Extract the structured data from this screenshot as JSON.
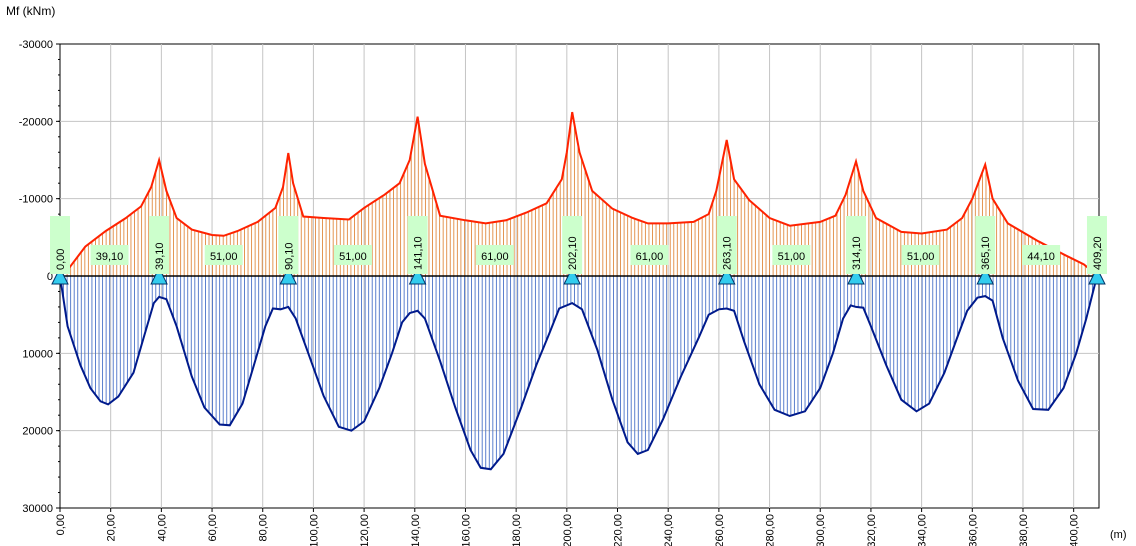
{
  "chart_data": {
    "type": "line",
    "ylabel": "Mf (kNm)",
    "xlabel": "(m)",
    "xlim": [
      0,
      410
    ],
    "ylim": [
      -30000,
      30000
    ],
    "y_inverted": true,
    "grid": true,
    "y_ticks": [
      "-30000",
      "-20000",
      "-10000",
      "0",
      "10000",
      "20000",
      "30000"
    ],
    "y_tick_values": [
      -30000,
      -20000,
      -10000,
      0,
      10000,
      20000,
      30000
    ],
    "x_ticks": [
      "0,00",
      "20,00",
      "40,00",
      "60,00",
      "80,00",
      "100,00",
      "120,00",
      "140,00",
      "160,00",
      "180,00",
      "200,00",
      "220,00",
      "240,00",
      "260,00",
      "280,00",
      "300,00",
      "320,00",
      "340,00",
      "360,00",
      "380,00",
      "400,00"
    ],
    "x_tick_values": [
      0,
      20,
      40,
      60,
      80,
      100,
      120,
      140,
      160,
      180,
      200,
      220,
      240,
      260,
      280,
      300,
      320,
      340,
      360,
      380,
      400
    ],
    "supports": [
      {
        "x": 0.0,
        "label": "0,00"
      },
      {
        "x": 39.1,
        "label": "39,10"
      },
      {
        "x": 90.1,
        "label": "90,10"
      },
      {
        "x": 141.1,
        "label": "141,10"
      },
      {
        "x": 202.1,
        "label": "202,10"
      },
      {
        "x": 263.1,
        "label": "263,10"
      },
      {
        "x": 314.1,
        "label": "314,10"
      },
      {
        "x": 365.1,
        "label": "365,10"
      },
      {
        "x": 409.2,
        "label": "409,20"
      }
    ],
    "spans": [
      {
        "x": 19.55,
        "label": "39,10"
      },
      {
        "x": 64.6,
        "label": "51,00"
      },
      {
        "x": 115.6,
        "label": "51,00"
      },
      {
        "x": 171.6,
        "label": "61,00"
      },
      {
        "x": 232.6,
        "label": "61,00"
      },
      {
        "x": 288.6,
        "label": "51,00"
      },
      {
        "x": 339.6,
        "label": "51,00"
      },
      {
        "x": 387.15,
        "label": "44,10"
      }
    ],
    "series": [
      {
        "color": "#ff2200",
        "hatch_color": "#e08a40",
        "points": [
          [
            0,
            -200
          ],
          [
            4,
            -1200
          ],
          [
            10,
            -3800
          ],
          [
            18,
            -5800
          ],
          [
            26,
            -7500
          ],
          [
            32,
            -9000
          ],
          [
            36,
            -11500
          ],
          [
            39.1,
            -15000
          ],
          [
            42,
            -11000
          ],
          [
            46,
            -7500
          ],
          [
            52,
            -6000
          ],
          [
            60,
            -5300
          ],
          [
            64.6,
            -5200
          ],
          [
            70,
            -5800
          ],
          [
            78,
            -7000
          ],
          [
            85,
            -8800
          ],
          [
            88,
            -11500
          ],
          [
            90.1,
            -15900
          ],
          [
            92,
            -12000
          ],
          [
            96,
            -7700
          ],
          [
            104,
            -7500
          ],
          [
            114,
            -7300
          ],
          [
            120,
            -8800
          ],
          [
            128,
            -10500
          ],
          [
            134,
            -12000
          ],
          [
            138,
            -15000
          ],
          [
            141.1,
            -20600
          ],
          [
            144,
            -14500
          ],
          [
            150,
            -7800
          ],
          [
            160,
            -7200
          ],
          [
            168,
            -6800
          ],
          [
            176,
            -7200
          ],
          [
            184,
            -8200
          ],
          [
            192,
            -9400
          ],
          [
            198,
            -12500
          ],
          [
            200,
            -16000
          ],
          [
            202.1,
            -21200
          ],
          [
            205,
            -16000
          ],
          [
            210,
            -11000
          ],
          [
            218,
            -8700
          ],
          [
            226,
            -7500
          ],
          [
            232,
            -6800
          ],
          [
            240,
            -6800
          ],
          [
            250,
            -7000
          ],
          [
            256,
            -8000
          ],
          [
            259,
            -11000
          ],
          [
            263.1,
            -17600
          ],
          [
            266,
            -12500
          ],
          [
            272,
            -9800
          ],
          [
            280,
            -7500
          ],
          [
            288,
            -6500
          ],
          [
            300,
            -7000
          ],
          [
            306,
            -7800
          ],
          [
            310,
            -10500
          ],
          [
            314.1,
            -14800
          ],
          [
            317,
            -11000
          ],
          [
            322,
            -7500
          ],
          [
            332,
            -5700
          ],
          [
            340,
            -5500
          ],
          [
            350,
            -6000
          ],
          [
            356,
            -7500
          ],
          [
            360,
            -10000
          ],
          [
            365.1,
            -14400
          ],
          [
            368,
            -10000
          ],
          [
            374,
            -6800
          ],
          [
            386,
            -4500
          ],
          [
            396,
            -2800
          ],
          [
            404,
            -1500
          ],
          [
            409.2,
            -100
          ]
        ]
      },
      {
        "color": "#001a8c",
        "hatch_color": "#4a72c8",
        "points": [
          [
            0,
            0
          ],
          [
            3,
            6500
          ],
          [
            8,
            11500
          ],
          [
            12,
            14500
          ],
          [
            16,
            16200
          ],
          [
            19,
            16600
          ],
          [
            23,
            15600
          ],
          [
            29,
            12500
          ],
          [
            33,
            8000
          ],
          [
            37,
            3500
          ],
          [
            39.1,
            2700
          ],
          [
            42,
            3000
          ],
          [
            46,
            6500
          ],
          [
            52,
            13000
          ],
          [
            57,
            17000
          ],
          [
            63,
            19200
          ],
          [
            67,
            19300
          ],
          [
            72,
            16500
          ],
          [
            77,
            11000
          ],
          [
            81,
            6500
          ],
          [
            84,
            4200
          ],
          [
            87,
            4300
          ],
          [
            90.1,
            4000
          ],
          [
            93,
            5500
          ],
          [
            98,
            10000
          ],
          [
            104,
            15500
          ],
          [
            110,
            19500
          ],
          [
            115,
            20000
          ],
          [
            120,
            18800
          ],
          [
            126,
            14500
          ],
          [
            131,
            10000
          ],
          [
            135,
            6000
          ],
          [
            138,
            4800
          ],
          [
            141.1,
            4500
          ],
          [
            144,
            5500
          ],
          [
            150,
            11000
          ],
          [
            156,
            17000
          ],
          [
            162,
            22500
          ],
          [
            166,
            24800
          ],
          [
            170,
            25000
          ],
          [
            175,
            23000
          ],
          [
            182,
            17000
          ],
          [
            188,
            11500
          ],
          [
            193,
            7500
          ],
          [
            197,
            4200
          ],
          [
            202.1,
            3500
          ],
          [
            206,
            4300
          ],
          [
            212,
            9500
          ],
          [
            218,
            16000
          ],
          [
            224,
            21500
          ],
          [
            228,
            23000
          ],
          [
            232,
            22500
          ],
          [
            238,
            18500
          ],
          [
            245,
            13000
          ],
          [
            252,
            8000
          ],
          [
            256,
            5000
          ],
          [
            260,
            4300
          ],
          [
            263.1,
            4200
          ],
          [
            266,
            4500
          ],
          [
            270,
            8500
          ],
          [
            276,
            14000
          ],
          [
            282,
            17300
          ],
          [
            288,
            18100
          ],
          [
            294,
            17500
          ],
          [
            300,
            14500
          ],
          [
            305,
            10000
          ],
          [
            309,
            5500
          ],
          [
            312,
            3800
          ],
          [
            314.1,
            4000
          ],
          [
            317,
            4100
          ],
          [
            320,
            6500
          ],
          [
            326,
            11500
          ],
          [
            332,
            16000
          ],
          [
            338,
            17500
          ],
          [
            343,
            16500
          ],
          [
            349,
            12500
          ],
          [
            354,
            8000
          ],
          [
            358,
            4500
          ],
          [
            362,
            2800
          ],
          [
            365.1,
            2600
          ],
          [
            368,
            3200
          ],
          [
            372,
            8000
          ],
          [
            378,
            13500
          ],
          [
            384,
            17200
          ],
          [
            390,
            17300
          ],
          [
            396,
            14500
          ],
          [
            401,
            10000
          ],
          [
            405,
            5500
          ],
          [
            409.2,
            0
          ]
        ]
      }
    ]
  }
}
